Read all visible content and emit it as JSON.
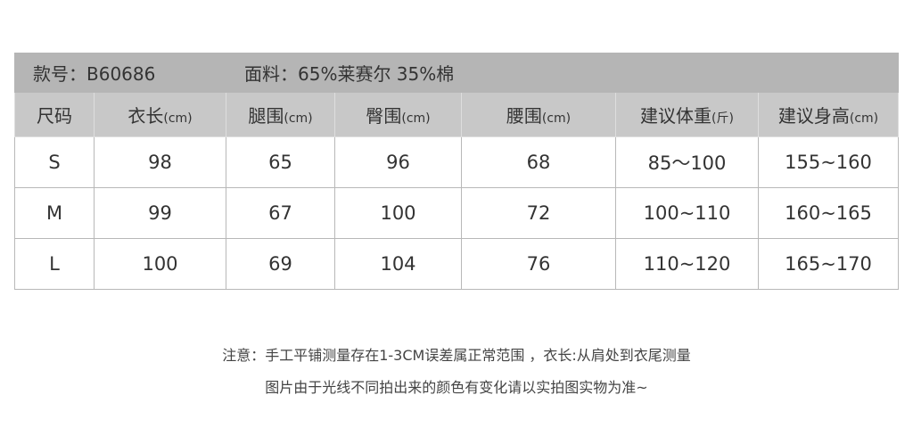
{
  "title": {
    "style": "款号：B60686",
    "fabric": "面料：65%莱赛尔 35%棉"
  },
  "headers": [
    {
      "label": "尺码",
      "unit": ""
    },
    {
      "label": "衣长",
      "unit": "(cm)"
    },
    {
      "label": "腿围",
      "unit": "(cm)"
    },
    {
      "label": "臀围",
      "unit": "(cm)"
    },
    {
      "label": "腰围",
      "unit": "(cm)"
    },
    {
      "label": "建议体重",
      "unit": "(斤)"
    },
    {
      "label": "建议身高",
      "unit": "(cm)"
    }
  ],
  "rows": [
    [
      "S",
      "98",
      "65",
      "96",
      "68",
      "85～100",
      "155~160"
    ],
    [
      "M",
      "99",
      "67",
      "100",
      "72",
      "100~110",
      "160~165"
    ],
    [
      "L",
      "100",
      "69",
      "104",
      "76",
      "110~120",
      "165~170"
    ]
  ],
  "notes": [
    "注意：手工平铺测量存在1-3CM误差属正常范围 ，衣长:从肩处到衣尾测量",
    "图片由于光线不同拍出来的颜色有变化请以实拍图实物为准~"
  ]
}
